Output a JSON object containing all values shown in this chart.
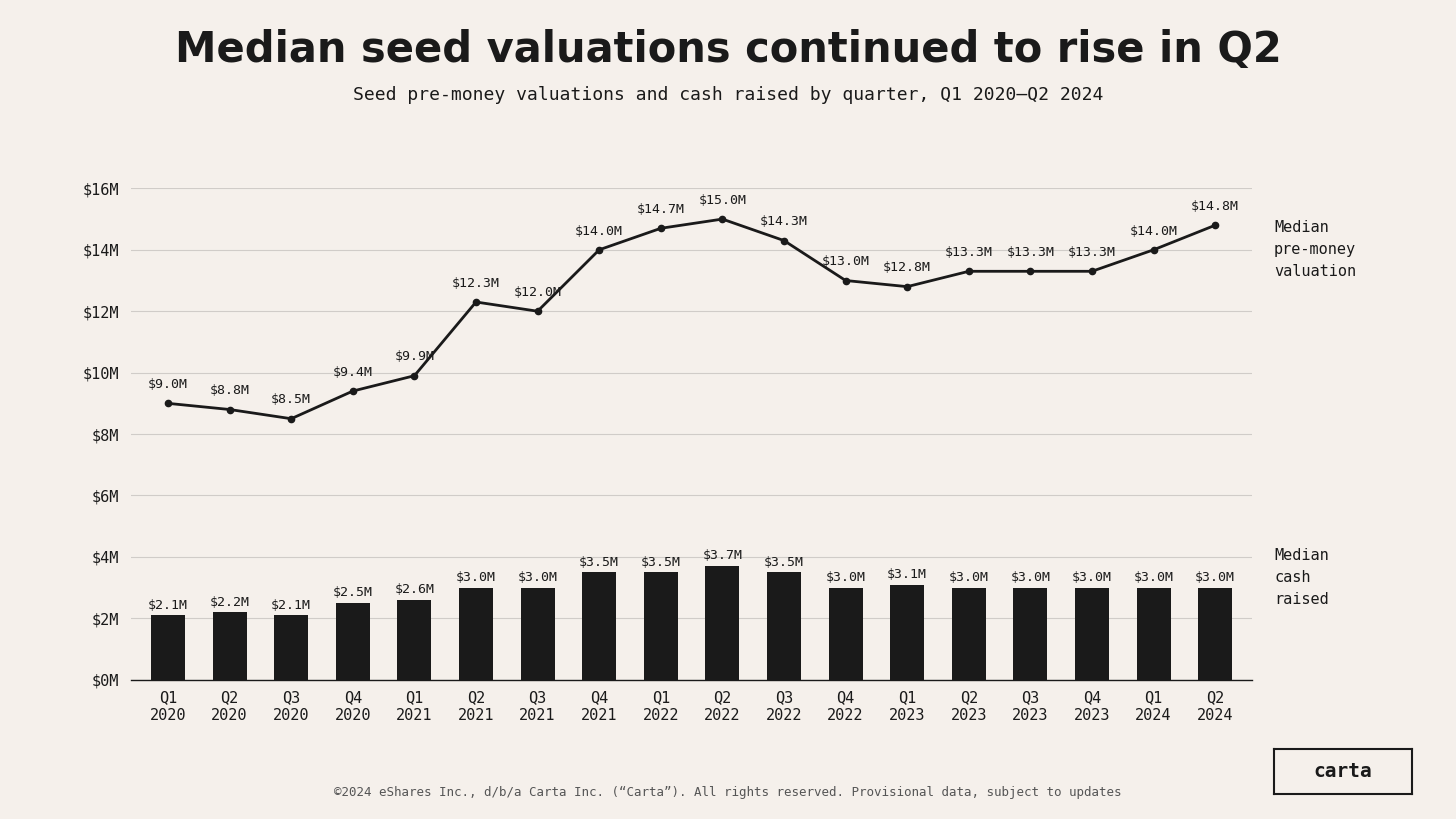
{
  "title": "Median seed valuations continued to rise in Q2",
  "subtitle": "Seed pre-money valuations and cash raised by quarter, Q1 2020—Q2 2024",
  "footer": "©2024 eShares Inc., d/b/a Carta Inc. (“Carta”). All rights reserved. Provisional data, subject to updates",
  "categories": [
    "Q1\n2020",
    "Q2\n2020",
    "Q3\n2020",
    "Q4\n2020",
    "Q1\n2021",
    "Q2\n2021",
    "Q3\n2021",
    "Q4\n2021",
    "Q1\n2022",
    "Q2\n2022",
    "Q3\n2022",
    "Q4\n2022",
    "Q1\n2023",
    "Q2\n2023",
    "Q3\n2023",
    "Q4\n2023",
    "Q1\n2024",
    "Q2\n2024"
  ],
  "valuation": [
    9.0,
    8.8,
    8.5,
    9.4,
    9.9,
    12.3,
    12.0,
    14.0,
    14.7,
    15.0,
    14.3,
    13.0,
    12.8,
    13.3,
    13.3,
    13.3,
    14.0,
    14.8
  ],
  "cash_raised": [
    2.1,
    2.2,
    2.1,
    2.5,
    2.6,
    3.0,
    3.0,
    3.5,
    3.5,
    3.7,
    3.5,
    3.0,
    3.1,
    3.0,
    3.0,
    3.0,
    3.0,
    3.0
  ],
  "valuation_labels": [
    "$9.0M",
    "$8.8M",
    "$8.5M",
    "$9.4M",
    "$9.9M",
    "$12.3M",
    "$12.0M",
    "$14.0M",
    "$14.7M",
    "$15.0M",
    "$14.3M",
    "$13.0M",
    "$12.8M",
    "$13.3M",
    "$13.3M",
    "$13.3M",
    "$14.0M",
    "$14.8M"
  ],
  "cash_labels": [
    "$2.1M",
    "$2.2M",
    "$2.1M",
    "$2.5M",
    "$2.6M",
    "$3.0M",
    "$3.0M",
    "$3.5M",
    "$3.5M",
    "$3.7M",
    "$3.5M",
    "$3.0M",
    "$3.1M",
    "$3.0M",
    "$3.0M",
    "$3.0M",
    "$3.0M",
    "$3.0M"
  ],
  "background_color": "#f5f0eb",
  "bar_color": "#1a1a1a",
  "line_color": "#1a1a1a",
  "text_color": "#1a1a1a",
  "grid_color": "#d0ccc8",
  "ylim": [
    0,
    16
  ],
  "yticks": [
    0,
    2,
    4,
    6,
    8,
    10,
    12,
    14,
    16
  ],
  "ytick_labels": [
    "$0M",
    "$2M",
    "$4M",
    "$6M",
    "$8M",
    "$10M",
    "$12M",
    "$14M",
    "$16M"
  ],
  "legend_valuation": "Median\npre-money\nvaluation",
  "legend_cash": "Median\ncash\nraised",
  "title_fontsize": 30,
  "subtitle_fontsize": 13,
  "tick_fontsize": 11,
  "label_fontsize": 9.5,
  "carta_label": "carta",
  "valuation_label_offsets_y": [
    0.4,
    0.4,
    0.4,
    0.4,
    0.4,
    0.4,
    0.4,
    0.4,
    0.4,
    0.4,
    0.4,
    0.4,
    0.4,
    0.4,
    0.4,
    0.4,
    0.4,
    0.4
  ],
  "valuation_label_offsets_x": [
    0,
    0,
    0,
    0,
    0,
    0,
    0,
    0,
    0,
    0,
    0,
    0,
    0,
    0,
    0,
    0,
    0,
    0
  ]
}
